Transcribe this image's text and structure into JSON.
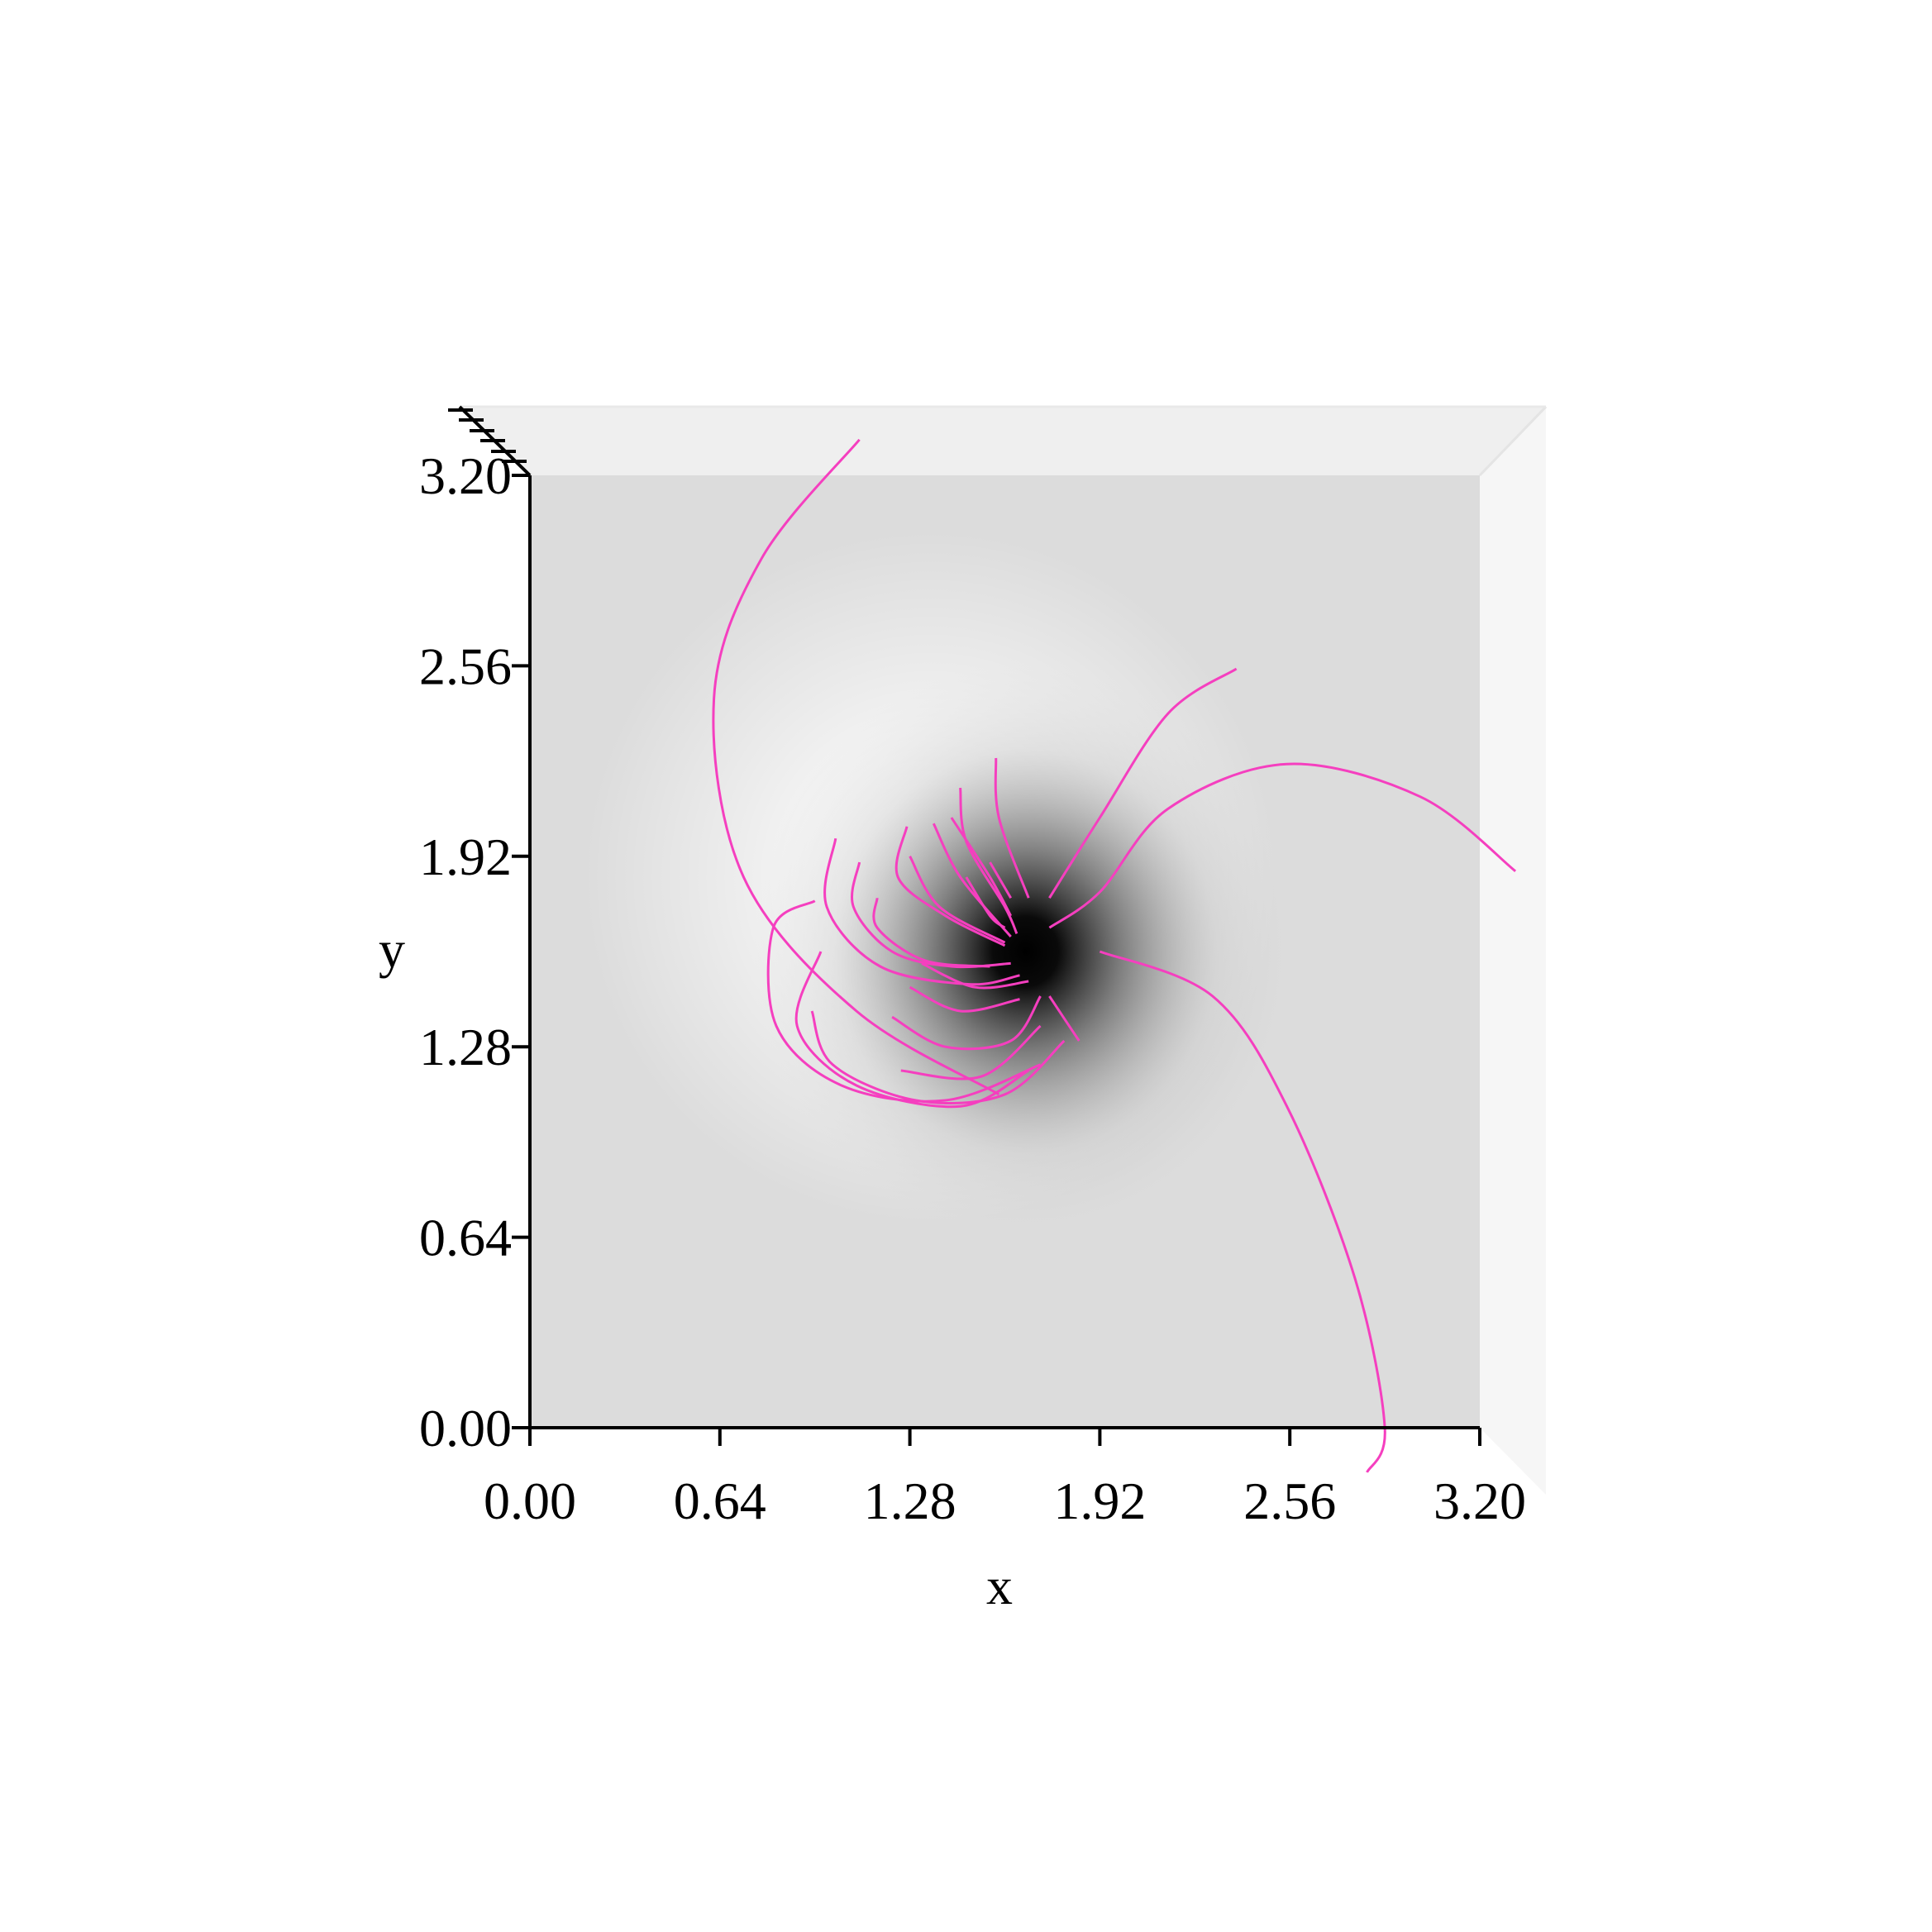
{
  "chart_data": {
    "type": "streamline",
    "title": "",
    "xlabel": "x",
    "ylabel": "y",
    "xlim": [
      0.0,
      3.2
    ],
    "ylim": [
      0.0,
      3.2
    ],
    "xticks": [
      "0.00",
      "0.64",
      "1.28",
      "1.92",
      "2.56",
      "3.20"
    ],
    "yticks": [
      "0.00",
      "0.64",
      "1.28",
      "1.92",
      "2.56",
      "3.20"
    ],
    "background": {
      "dark_center": [
        1.67,
        1.6
      ],
      "light_center": [
        1.35,
        1.85
      ],
      "base_color": "#dcdcdc"
    },
    "line_color": "#f53fbf",
    "series": [
      {
        "points": [
          [
            1.11,
            3.32
          ],
          [
            0.78,
            2.92
          ],
          [
            0.62,
            2.45
          ],
          [
            0.72,
            1.85
          ],
          [
            1.1,
            1.4
          ],
          [
            1.58,
            1.12
          ]
        ]
      },
      {
        "points": [
          [
            2.38,
            2.55
          ],
          [
            2.15,
            2.4
          ],
          [
            1.92,
            2.05
          ],
          [
            1.75,
            1.78
          ]
        ]
      },
      {
        "points": [
          [
            3.32,
            1.87
          ],
          [
            3.0,
            2.12
          ],
          [
            2.55,
            2.23
          ],
          [
            2.15,
            2.08
          ],
          [
            1.92,
            1.8
          ],
          [
            1.75,
            1.68
          ]
        ]
      },
      {
        "points": [
          [
            1.92,
            1.6
          ],
          [
            2.3,
            1.45
          ],
          [
            2.55,
            1.08
          ],
          [
            2.78,
            0.5
          ],
          [
            2.88,
            0.0
          ],
          [
            2.82,
            -0.15
          ]
        ]
      },
      {
        "points": [
          [
            0.96,
            1.77
          ],
          [
            0.82,
            1.68
          ],
          [
            0.83,
            1.35
          ],
          [
            1.05,
            1.15
          ],
          [
            1.4,
            1.1
          ],
          [
            1.72,
            1.22
          ]
        ]
      },
      {
        "points": [
          [
            0.98,
            1.6
          ],
          [
            0.9,
            1.35
          ],
          [
            1.1,
            1.15
          ],
          [
            1.45,
            1.08
          ],
          [
            1.68,
            1.2
          ]
        ]
      },
      {
        "points": [
          [
            0.95,
            1.4
          ],
          [
            1.02,
            1.22
          ],
          [
            1.3,
            1.1
          ],
          [
            1.6,
            1.12
          ],
          [
            1.8,
            1.3
          ]
        ]
      },
      {
        "points": [
          [
            1.22,
            1.38
          ],
          [
            1.4,
            1.28
          ],
          [
            1.62,
            1.3
          ],
          [
            1.72,
            1.45
          ]
        ]
      },
      {
        "points": [
          [
            1.25,
            1.2
          ],
          [
            1.52,
            1.18
          ],
          [
            1.72,
            1.35
          ]
        ]
      },
      {
        "points": [
          [
            1.28,
            1.48
          ],
          [
            1.45,
            1.4
          ],
          [
            1.65,
            1.44
          ]
        ]
      },
      {
        "points": [
          [
            1.32,
            1.56
          ],
          [
            1.5,
            1.48
          ],
          [
            1.68,
            1.5
          ]
        ]
      },
      {
        "points": [
          [
            1.03,
            1.98
          ],
          [
            1.0,
            1.75
          ],
          [
            1.18,
            1.55
          ],
          [
            1.48,
            1.49
          ],
          [
            1.65,
            1.52
          ]
        ]
      },
      {
        "points": [
          [
            1.11,
            1.9
          ],
          [
            1.09,
            1.75
          ],
          [
            1.22,
            1.6
          ],
          [
            1.42,
            1.55
          ],
          [
            1.62,
            1.56
          ]
        ]
      },
      {
        "points": [
          [
            1.17,
            1.78
          ],
          [
            1.17,
            1.68
          ],
          [
            1.33,
            1.57
          ],
          [
            1.55,
            1.55
          ]
        ]
      },
      {
        "points": [
          [
            1.27,
            2.02
          ],
          [
            1.24,
            1.85
          ],
          [
            1.4,
            1.72
          ],
          [
            1.6,
            1.62
          ]
        ]
      },
      {
        "points": [
          [
            1.28,
            1.92
          ],
          [
            1.38,
            1.75
          ],
          [
            1.6,
            1.63
          ]
        ]
      },
      {
        "points": [
          [
            1.36,
            2.03
          ],
          [
            1.45,
            1.85
          ],
          [
            1.62,
            1.65
          ]
        ]
      },
      {
        "points": [
          [
            1.45,
            2.15
          ],
          [
            1.47,
            1.97
          ],
          [
            1.6,
            1.75
          ],
          [
            1.64,
            1.66
          ]
        ]
      },
      {
        "points": [
          [
            1.42,
            2.05
          ],
          [
            1.55,
            1.85
          ],
          [
            1.62,
            1.72
          ]
        ]
      },
      {
        "points": [
          [
            1.57,
            2.25
          ],
          [
            1.58,
            2.05
          ],
          [
            1.68,
            1.78
          ]
        ]
      },
      {
        "points": [
          [
            1.47,
            1.85
          ],
          [
            1.55,
            1.72
          ],
          [
            1.6,
            1.68
          ]
        ]
      },
      {
        "points": [
          [
            1.55,
            1.9
          ],
          [
            1.62,
            1.78
          ]
        ]
      },
      {
        "points": [
          [
            1.75,
            1.45
          ],
          [
            1.85,
            1.3
          ]
        ]
      }
    ]
  }
}
